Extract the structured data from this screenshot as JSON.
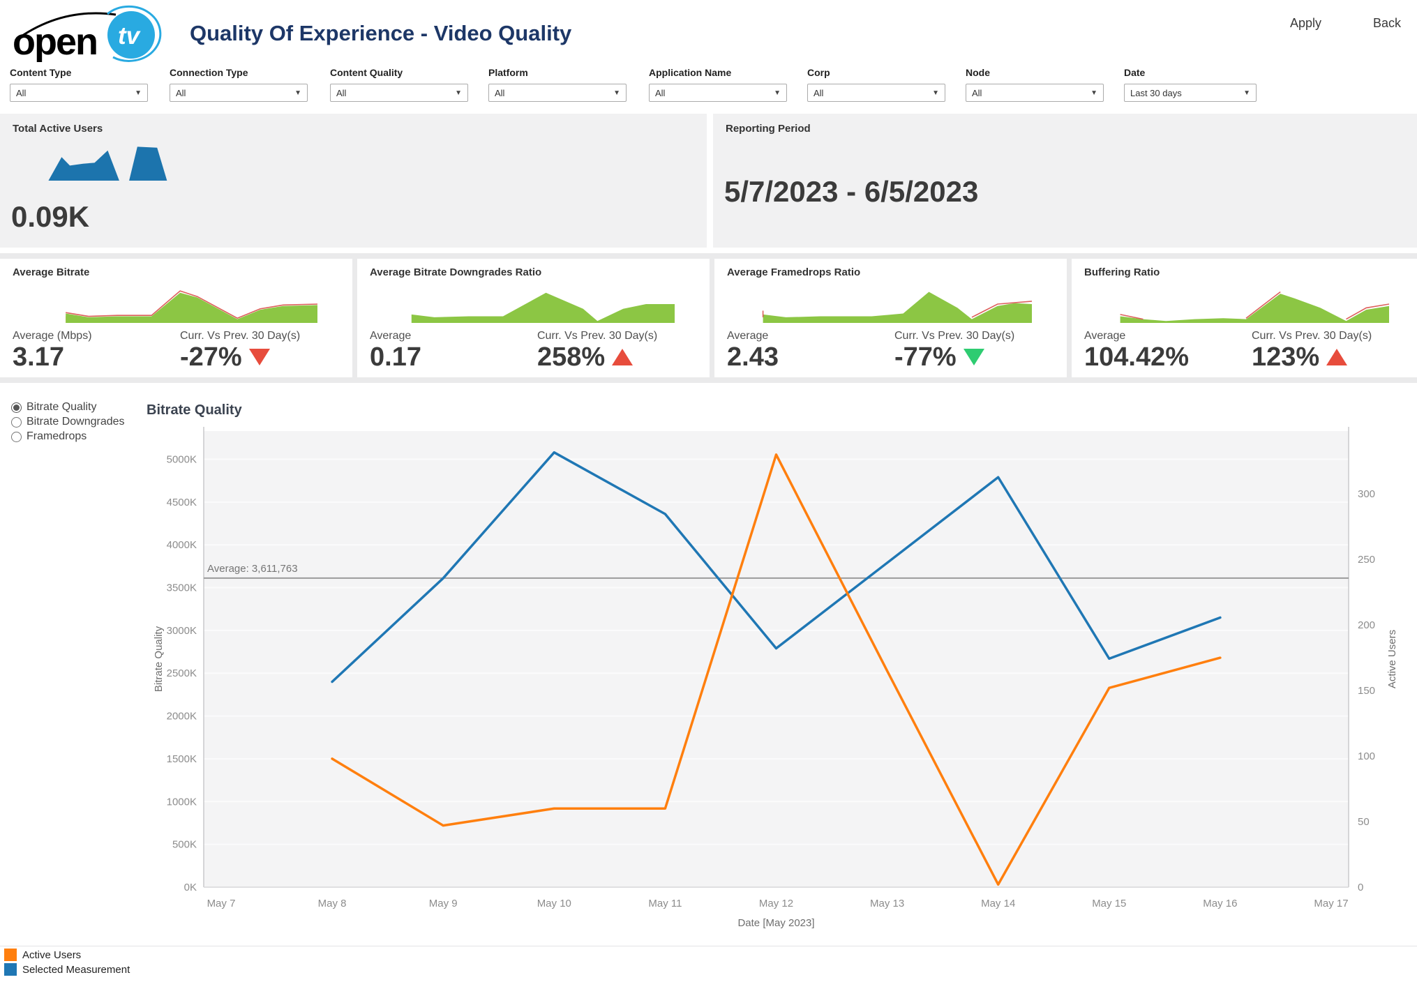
{
  "header": {
    "logo": {
      "word": "open",
      "tv": "tv",
      "circle_color": "#29aae1"
    },
    "title": "Quality Of Experience - Video Quality"
  },
  "actions": {
    "apply": "Apply",
    "back": "Back"
  },
  "filters": [
    {
      "label": "Content Type",
      "value": "All"
    },
    {
      "label": "Connection Type",
      "value": "All"
    },
    {
      "label": "Content Quality",
      "value": "All"
    },
    {
      "label": "Platform",
      "value": "All"
    },
    {
      "label": "Application Name",
      "value": "All"
    },
    {
      "label": "Corp",
      "value": "All"
    },
    {
      "label": "Node",
      "value": "All"
    },
    {
      "label": "Date",
      "value": "Last 30 days"
    }
  ],
  "summary_cards": {
    "total_active_users": {
      "title": "Total Active Users",
      "value": "0.09K",
      "spark": {
        "areas": [
          {
            "color": "#1c74ad",
            "points": [
              [
                4,
                40
              ],
              [
                12,
                15
              ],
              [
                17,
                24
              ],
              [
                25,
                22
              ],
              [
                32,
                21
              ],
              [
                40,
                8
              ],
              [
                47,
                40
              ],
              [
                53,
                40
              ],
              [
                58,
                4
              ],
              [
                70,
                5
              ],
              [
                76,
                40
              ],
              [
                82,
                40
              ]
            ]
          }
        ]
      }
    },
    "reporting_period": {
      "title": "Reporting Period",
      "value": "5/7/2023 - 6/5/2023"
    }
  },
  "kpi_cards": [
    {
      "title": "Average Bitrate",
      "value_label": "Average (Mbps)",
      "value": "3.17",
      "delta_label": "Curr. Vs Prev. 30 Day(s)",
      "delta": "-27%",
      "delta_dir": "down",
      "delta_color": "#e74c3c",
      "spark": {
        "areas": [
          {
            "color": "#f7941d",
            "points": [
              [
                12,
                33
              ],
              [
                26,
                36
              ],
              [
                26,
                40
              ],
              [
                12,
                40
              ]
            ]
          },
          {
            "color": "#f7941d",
            "points": [
              [
                40,
                40
              ],
              [
                52,
                10
              ],
              [
                52,
                40
              ]
            ]
          },
          {
            "color": "#f7941d",
            "points": [
              [
                78,
                34
              ],
              [
                100,
                33
              ],
              [
                100,
                40
              ],
              [
                78,
                40
              ]
            ]
          },
          {
            "color": "#8cc644",
            "points": [
              [
                12,
                30
              ],
              [
                20,
                34
              ],
              [
                30,
                33
              ],
              [
                42,
                33
              ],
              [
                52,
                8
              ],
              [
                58,
                13
              ],
              [
                72,
                36
              ],
              [
                80,
                26
              ],
              [
                88,
                22
              ],
              [
                100,
                21
              ]
            ]
          }
        ],
        "lines": [
          {
            "color": "#dd5f5b",
            "points": [
              [
                12,
                29
              ],
              [
                20,
                33
              ],
              [
                30,
                32
              ],
              [
                42,
                32
              ],
              [
                52,
                6
              ],
              [
                58,
                12
              ],
              [
                72,
                35
              ],
              [
                80,
                25
              ],
              [
                88,
                21
              ],
              [
                100,
                20
              ]
            ]
          }
        ]
      }
    },
    {
      "title": "Average Bitrate Downgrades Ratio",
      "value_label": "Average",
      "value": "0.17",
      "delta_label": "Curr. Vs Prev. 30 Day(s)",
      "delta": "258%",
      "delta_dir": "up",
      "delta_color": "#e74c3c",
      "spark": {
        "areas": [
          {
            "color": "#8cc644",
            "points": [
              [
                8,
                31
              ],
              [
                16,
                34
              ],
              [
                28,
                33
              ],
              [
                40,
                33
              ],
              [
                55,
                8
              ],
              [
                68,
                25
              ],
              [
                73,
                38
              ],
              [
                82,
                25
              ],
              [
                90,
                20
              ],
              [
                100,
                20
              ]
            ]
          }
        ]
      }
    },
    {
      "title": "Average Framedrops Ratio",
      "value_label": "Average",
      "value": "2.43",
      "delta_label": "Curr. Vs Prev. 30 Day(s)",
      "delta": "-77%",
      "delta_dir": "down",
      "delta_color": "#2ecc71",
      "spark": {
        "areas": [
          {
            "color": "#8cc644",
            "points": [
              [
                6,
                31
              ],
              [
                14,
                34
              ],
              [
                26,
                33
              ],
              [
                44,
                33
              ],
              [
                55,
                30
              ],
              [
                64,
                7
              ],
              [
                74,
                24
              ],
              [
                79,
                36
              ],
              [
                88,
                22
              ],
              [
                94,
                19
              ],
              [
                100,
                20
              ]
            ]
          }
        ],
        "lines": [
          {
            "color": "#dd5f5b",
            "points": [
              [
                6,
                27
              ],
              [
                6,
                34
              ]
            ]
          },
          {
            "color": "#dd5f5b",
            "points": [
              [
                79,
                34
              ],
              [
                88,
                20
              ],
              [
                100,
                17
              ]
            ]
          }
        ]
      }
    },
    {
      "title": "Buffering Ratio",
      "value_label": "Average",
      "value": "104.42%",
      "delta_label": "Curr. Vs Prev. 30 Day(s)",
      "delta": "123%",
      "delta_dir": "up",
      "delta_color": "#e74c3c",
      "spark": {
        "areas": [
          {
            "color": "#f7941d",
            "points": [
              [
                42,
                38
              ],
              [
                56,
                37
              ],
              [
                56,
                40
              ],
              [
                42,
                40
              ]
            ]
          },
          {
            "color": "#f7941d",
            "points": [
              [
                85,
                38
              ],
              [
                100,
                37
              ],
              [
                100,
                40
              ],
              [
                85,
                40
              ]
            ]
          },
          {
            "color": "#8cc644",
            "points": [
              [
                6,
                33
              ],
              [
                14,
                36
              ],
              [
                22,
                38
              ],
              [
                32,
                36
              ],
              [
                42,
                35
              ],
              [
                50,
                36
              ],
              [
                62,
                9
              ],
              [
                67,
                14
              ],
              [
                76,
                24
              ],
              [
                85,
                38
              ],
              [
                92,
                26
              ],
              [
                100,
                22
              ]
            ]
          }
        ],
        "lines": [
          {
            "color": "#dd5f5b",
            "points": [
              [
                6,
                31
              ],
              [
                14,
                36
              ]
            ]
          },
          {
            "color": "#dd5f5b",
            "points": [
              [
                50,
                35
              ],
              [
                62,
                7
              ]
            ]
          },
          {
            "color": "#dd5f5b",
            "points": [
              [
                85,
                36
              ],
              [
                92,
                24
              ],
              [
                100,
                20
              ]
            ]
          }
        ]
      }
    }
  ],
  "measurement_options": [
    {
      "label": "Bitrate Quality",
      "selected": true
    },
    {
      "label": "Bitrate Downgrades",
      "selected": false
    },
    {
      "label": "Framedrops",
      "selected": false
    }
  ],
  "chart_data": {
    "type": "line",
    "title": "Bitrate Quality",
    "x_title": "Date [May 2023]",
    "categories": [
      "May 7",
      "May 8",
      "May 9",
      "May 10",
      "May 11",
      "May 12",
      "May 13",
      "May 14",
      "May 15",
      "May 16",
      "May 17"
    ],
    "left_axis": {
      "title": "Bitrate Quality",
      "max": 5330000,
      "ticks": [
        {
          "label": "0K",
          "value": 0
        },
        {
          "label": "500K",
          "value": 500000
        },
        {
          "label": "1000K",
          "value": 1000000
        },
        {
          "label": "1500K",
          "value": 1500000
        },
        {
          "label": "2000K",
          "value": 2000000
        },
        {
          "label": "2500K",
          "value": 2500000
        },
        {
          "label": "3000K",
          "value": 3000000
        },
        {
          "label": "3500K",
          "value": 3500000
        },
        {
          "label": "4000K",
          "value": 4000000
        },
        {
          "label": "4500K",
          "value": 4500000
        },
        {
          "label": "5000K",
          "value": 5000000
        }
      ]
    },
    "right_axis": {
      "title": "Active Users",
      "max": 348,
      "ticks": [
        {
          "label": "0",
          "value": 0
        },
        {
          "label": "50",
          "value": 50
        },
        {
          "label": "100",
          "value": 100
        },
        {
          "label": "150",
          "value": 150
        },
        {
          "label": "200",
          "value": 200
        },
        {
          "label": "250",
          "value": 250
        },
        {
          "label": "300",
          "value": 300
        }
      ]
    },
    "average_line": {
      "label": "Average: 3,611,763",
      "value": 3611763
    },
    "series": [
      {
        "name": "Active Users",
        "color": "#ff7f0e",
        "axis": "right",
        "values": [
          null,
          98,
          47,
          60,
          60,
          330,
          165,
          2,
          152,
          175,
          null
        ]
      },
      {
        "name": "Selected Measurement",
        "color": "#1f77b4",
        "axis": "left",
        "values": [
          null,
          2400000,
          3610000,
          5080000,
          4360000,
          2790000,
          3790000,
          4790000,
          2670000,
          3150000,
          null
        ]
      }
    ],
    "legend_position": "bottom-left",
    "grid": true,
    "plot_bg": "#f4f4f5"
  }
}
